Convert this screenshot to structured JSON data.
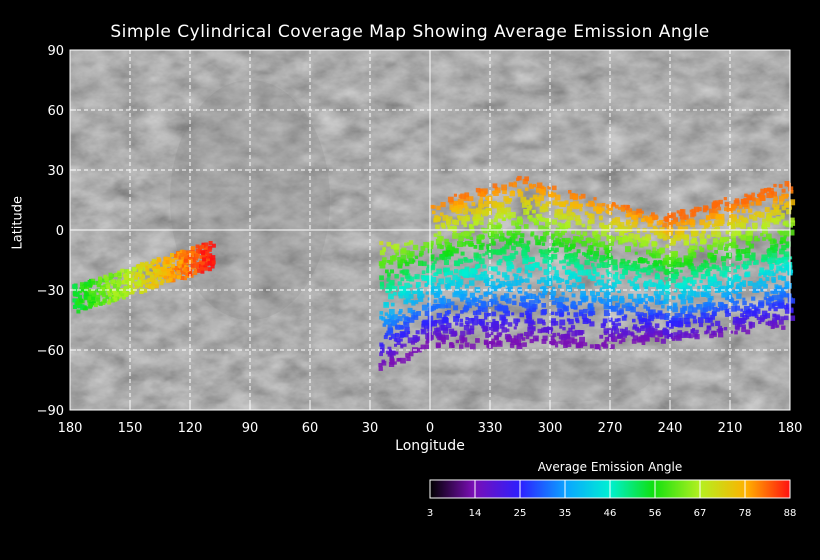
{
  "title": "Simple Cylindrical Coverage Map Showing Average Emission Angle",
  "axes": {
    "ylabel": "Latitude",
    "xlabel": "Longitude",
    "lat_ticks": [
      "90",
      "60",
      "30",
      "0",
      "−30",
      "−60",
      "−90"
    ],
    "lon_ticks": [
      "180",
      "150",
      "120",
      "90",
      "60",
      "30",
      "0",
      "330",
      "300",
      "270",
      "240",
      "210",
      "180"
    ]
  },
  "colorbar": {
    "title": "Average Emission Angle",
    "ticks": [
      "3",
      "14",
      "25",
      "35",
      "46",
      "56",
      "67",
      "78",
      "88"
    ],
    "colors": [
      "#000000",
      "#7a0fb5",
      "#2d1fff",
      "#0aa6ff",
      "#00f0d2",
      "#10e010",
      "#b4f020",
      "#ffb000",
      "#ff1010"
    ]
  },
  "coverage_regions": [
    {
      "name": "western-limb-strip",
      "range": "near 120–180 longitude, roughly -45 to -10 latitude"
    },
    {
      "name": "main-fan",
      "range": "near 350–190 longitude, roughly -65 to 25 latitude"
    }
  ]
}
